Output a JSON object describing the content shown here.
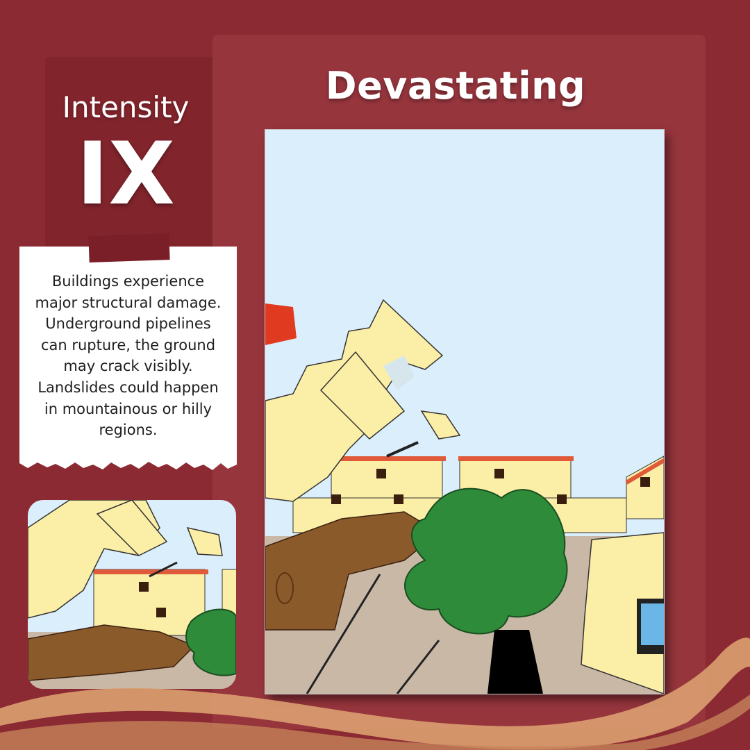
{
  "title": "Devastating",
  "intensity": {
    "label": "Intensity",
    "level": "IX"
  },
  "description": {
    "lines": [
      "Buildings experience",
      "major structural damage.",
      "Underground pipelines",
      "can rupture, the ground",
      "may crack visibly.",
      "Landslides could happen",
      "in mountainous or hilly",
      "regions."
    ]
  },
  "colors": {
    "background": "#8b2a32",
    "panel": "#97353d",
    "intensity_box": "#82242c",
    "wave": "#d89a6e",
    "sky": "#dbeefb",
    "building": "#fbeea6",
    "roof": "#e05a3a",
    "tree": "#2e8b3a",
    "trunk": "#8b5a2b",
    "ground": "#c9b8a6"
  }
}
